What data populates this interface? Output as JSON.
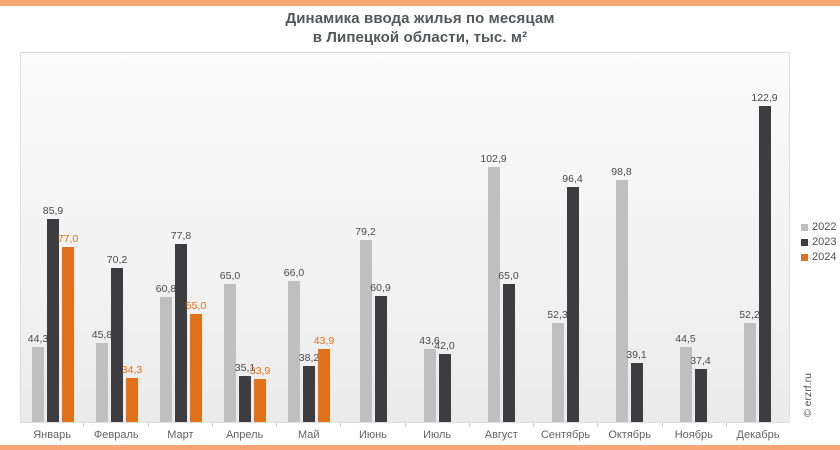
{
  "accent": {
    "strip_color": "#F8A673"
  },
  "title": {
    "line1": "Динамика ввода жилья по месяцам",
    "line2": "в Липецкой области, тыс. м²"
  },
  "watermark": "© erzrf.ru",
  "chart_data": {
    "type": "bar",
    "title": "Динамика ввода жилья по месяцам в Липецкой области, тыс. м²",
    "categories": [
      "Январь",
      "Февраль",
      "Март",
      "Апрель",
      "Май",
      "Июнь",
      "Июль",
      "Август",
      "Сентябрь",
      "Октябрь",
      "Ноябрь",
      "Декабрь"
    ],
    "series": [
      {
        "name": "2022",
        "color": "#BFBFBF",
        "label_color": "#4A4A4A",
        "values": [
          44.3,
          45.8,
          60.8,
          65.0,
          66.0,
          79.2,
          43.6,
          102.9,
          52.3,
          98.8,
          44.5,
          52.2
        ]
      },
      {
        "name": "2023",
        "color": "#3D3D3F",
        "label_color": "#4A4A4A",
        "values": [
          85.9,
          70.2,
          77.8,
          35.1,
          38.2,
          60.9,
          42.0,
          65.0,
          96.4,
          39.1,
          37.4,
          122.9
        ]
      },
      {
        "name": "2024",
        "color": "#E2711B",
        "label_color": "#E2711B",
        "values": [
          77.0,
          34.3,
          55.0,
          33.9,
          43.9,
          null,
          null,
          null,
          null,
          null,
          null,
          null
        ]
      }
    ],
    "xlabel": "",
    "ylabel": "",
    "ylim": [
      20,
      140
    ],
    "grid": false,
    "legend_position": "right",
    "value_labels": true,
    "decimal_separator": ","
  }
}
